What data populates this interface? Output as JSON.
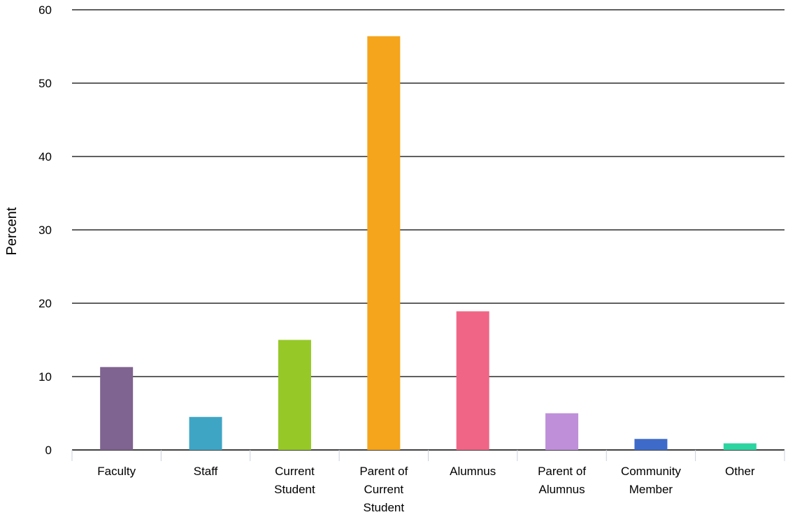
{
  "chart_data": {
    "type": "bar",
    "title": "",
    "xlabel": "",
    "ylabel": "Percent",
    "ylim": [
      0,
      60
    ],
    "yticks": [
      0,
      10,
      20,
      30,
      40,
      50,
      60
    ],
    "grid": true,
    "categories": [
      [
        "Faculty"
      ],
      [
        "Staff"
      ],
      [
        "Current",
        "Student"
      ],
      [
        "Parent of",
        "Current",
        "Student"
      ],
      [
        "Alumnus"
      ],
      [
        "Parent of",
        "Alumnus"
      ],
      [
        "Community",
        "Member"
      ],
      [
        "Other"
      ]
    ],
    "values": [
      11.3,
      4.5,
      15.0,
      56.4,
      18.9,
      5.0,
      1.5,
      0.9
    ],
    "colors": [
      "#7f6390",
      "#3fa5c4",
      "#96c828",
      "#f5a51c",
      "#f06585",
      "#bf8fd9",
      "#3e6bc9",
      "#2bd4a0"
    ]
  }
}
